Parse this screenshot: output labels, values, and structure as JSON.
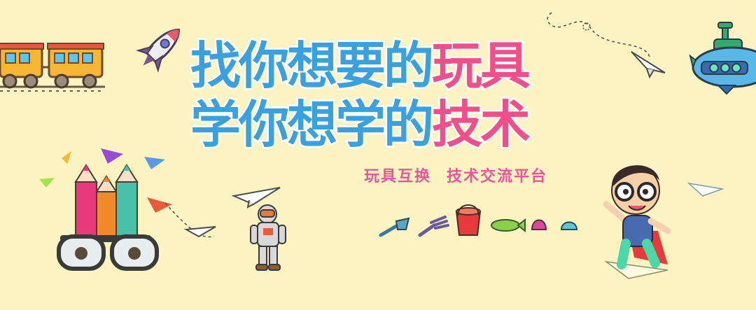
{
  "headline": {
    "line1_blue": "找你想要的",
    "line1_pink": "玩具",
    "line2_blue": "学你想学的",
    "line2_pink": "技术"
  },
  "tagline": {
    "left": "玩具互换",
    "right": "技术交流平台"
  },
  "colors": {
    "background": "#fcf3c2",
    "headline_blue": "#3aa0de",
    "headline_pink": "#f0508a",
    "tagline": "#e8559a"
  },
  "decorations": [
    "toy-train-icon",
    "rocket-icon",
    "paper-plane-icon",
    "submarine-icon",
    "pencils-glasses-icon",
    "astronaut-icon",
    "beach-toys-icon",
    "cartoon-boy-icon"
  ]
}
